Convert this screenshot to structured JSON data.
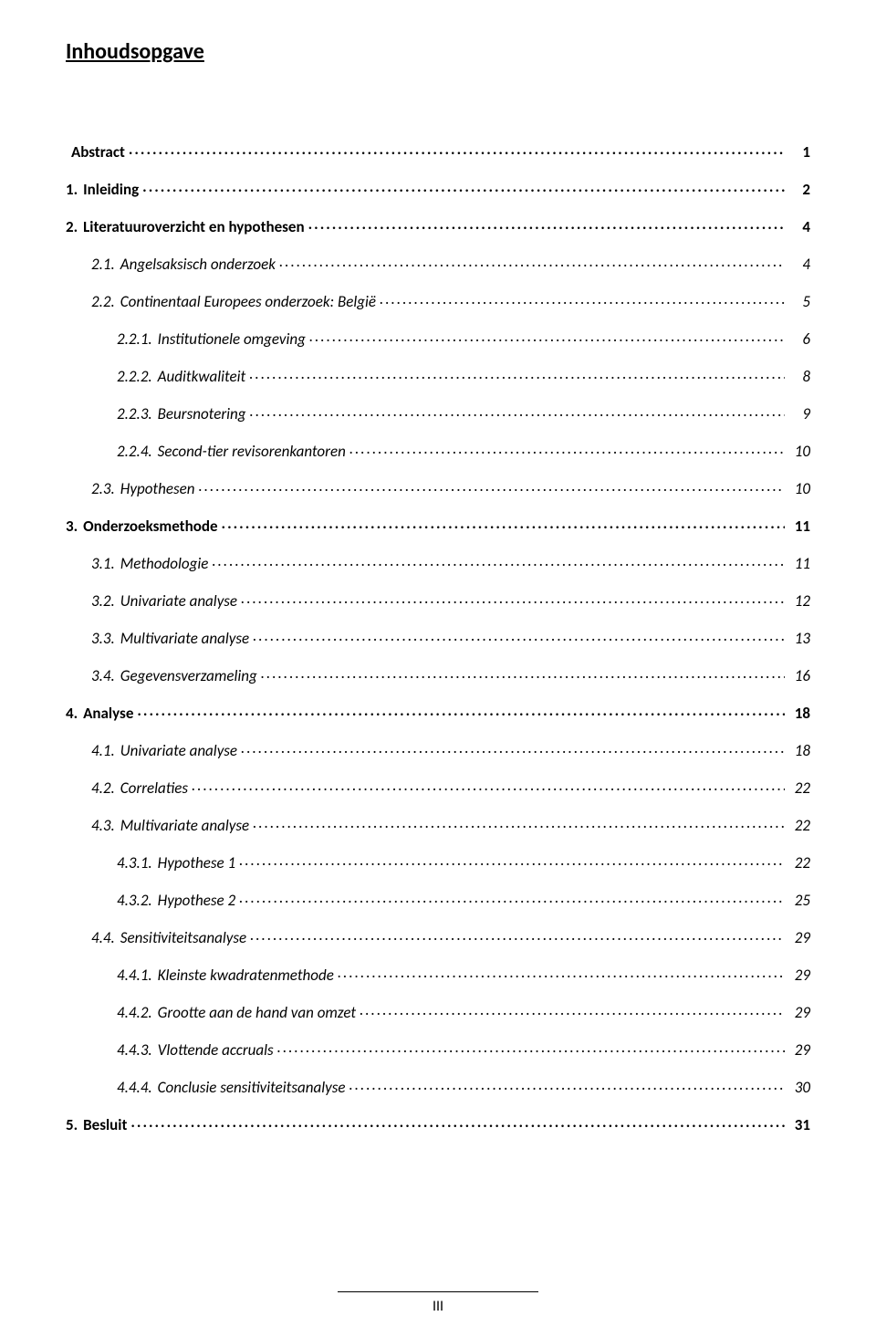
{
  "page": {
    "title": "Inhoudsopgave",
    "footer_page_number": "III",
    "background_color": "#ffffff",
    "text_color": "#000000",
    "title_fontsize_pt": 18,
    "entry_fontsize_pt": 12
  },
  "toc": [
    {
      "number": "",
      "label": "Abstract",
      "page": "1",
      "indent": 0,
      "bold": true,
      "italic": false
    },
    {
      "number": "1.",
      "label": "Inleiding",
      "page": "2",
      "indent": 0,
      "bold": true,
      "italic": false
    },
    {
      "number": "2.",
      "label": "Literatuuroverzicht en hypothesen",
      "page": "4",
      "indent": 0,
      "bold": true,
      "italic": false
    },
    {
      "number": "2.1.",
      "label": "Angelsaksisch onderzoek",
      "page": "4",
      "indent": 1,
      "bold": false,
      "italic": true
    },
    {
      "number": "2.2.",
      "label": "Continentaal Europees onderzoek: België",
      "page": "5",
      "indent": 1,
      "bold": false,
      "italic": true
    },
    {
      "number": "2.2.1.",
      "label": "Institutionele omgeving",
      "page": "6",
      "indent": 2,
      "bold": false,
      "italic": true
    },
    {
      "number": "2.2.2.",
      "label": "Auditkwaliteit",
      "page": "8",
      "indent": 2,
      "bold": false,
      "italic": true
    },
    {
      "number": "2.2.3.",
      "label": "Beursnotering",
      "page": "9",
      "indent": 2,
      "bold": false,
      "italic": true
    },
    {
      "number": "2.2.4.",
      "label": "Second-tier revisorenkantoren",
      "page": "10",
      "indent": 2,
      "bold": false,
      "italic": true
    },
    {
      "number": "2.3.",
      "label": "Hypothesen",
      "page": "10",
      "indent": 1,
      "bold": false,
      "italic": true
    },
    {
      "number": "3.",
      "label": "Onderzoeksmethode",
      "page": "11",
      "indent": 0,
      "bold": true,
      "italic": false
    },
    {
      "number": "3.1.",
      "label": "Methodologie",
      "page": "11",
      "indent": 1,
      "bold": false,
      "italic": true
    },
    {
      "number": "3.2.",
      "label": "Univariate analyse",
      "page": "12",
      "indent": 1,
      "bold": false,
      "italic": true
    },
    {
      "number": "3.3.",
      "label": "Multivariate analyse",
      "page": "13",
      "indent": 1,
      "bold": false,
      "italic": true
    },
    {
      "number": "3.4.",
      "label": "Gegevensverzameling",
      "page": "16",
      "indent": 1,
      "bold": false,
      "italic": true
    },
    {
      "number": "4.",
      "label": "Analyse",
      "page": "18",
      "indent": 0,
      "bold": true,
      "italic": false
    },
    {
      "number": "4.1.",
      "label": "Univariate analyse",
      "page": "18",
      "indent": 1,
      "bold": false,
      "italic": true
    },
    {
      "number": "4.2.",
      "label": "Correlaties",
      "page": "22",
      "indent": 1,
      "bold": false,
      "italic": true
    },
    {
      "number": "4.3.",
      "label": "Multivariate analyse",
      "page": "22",
      "indent": 1,
      "bold": false,
      "italic": true
    },
    {
      "number": "4.3.1.",
      "label": "Hypothese 1",
      "page": "22",
      "indent": 2,
      "bold": false,
      "italic": true
    },
    {
      "number": "4.3.2.",
      "label": "Hypothese 2",
      "page": "25",
      "indent": 2,
      "bold": false,
      "italic": true
    },
    {
      "number": "4.4.",
      "label": "Sensitiviteitsanalyse",
      "page": "29",
      "indent": 1,
      "bold": false,
      "italic": true
    },
    {
      "number": "4.4.1.",
      "label": "Kleinste kwadratenmethode",
      "page": "29",
      "indent": 2,
      "bold": false,
      "italic": true
    },
    {
      "number": "4.4.2.",
      "label": "Grootte aan de hand van omzet",
      "page": "29",
      "indent": 2,
      "bold": false,
      "italic": true
    },
    {
      "number": "4.4.3.",
      "label": "Vlottende accruals",
      "page": "29",
      "indent": 2,
      "bold": false,
      "italic": true
    },
    {
      "number": "4.4.4.",
      "label": "Conclusie sensitiviteitsanalyse",
      "page": "30",
      "indent": 2,
      "bold": false,
      "italic": true
    },
    {
      "number": "5.",
      "label": "Besluit",
      "page": "31",
      "indent": 0,
      "bold": true,
      "italic": false
    }
  ]
}
